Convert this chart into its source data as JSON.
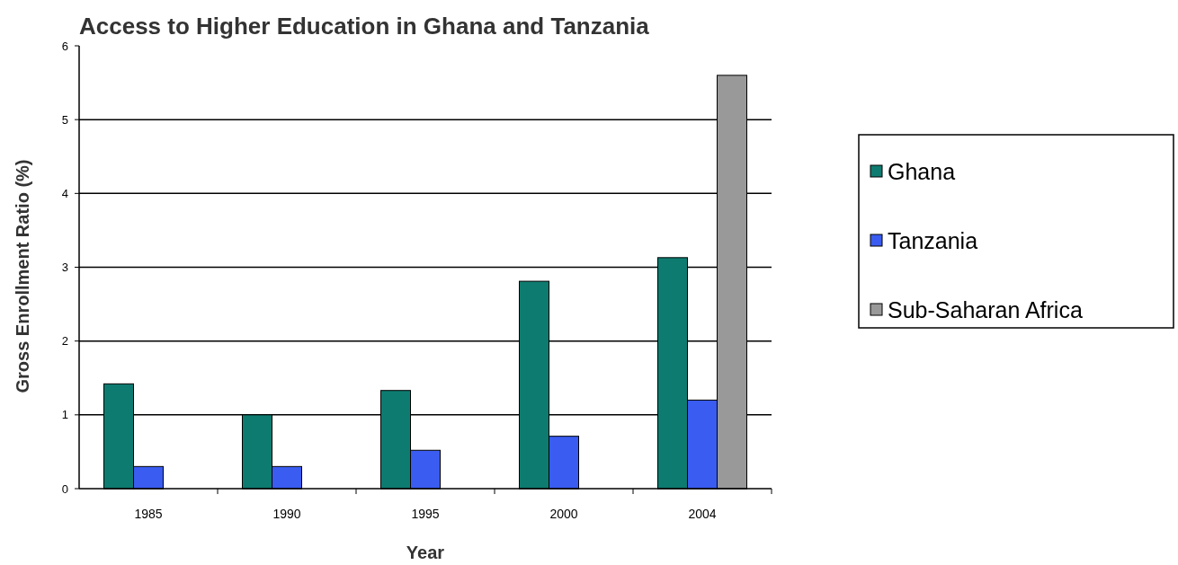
{
  "chart_data": {
    "type": "bar",
    "title": "Access to Higher Education in Ghana and Tanzania",
    "xlabel": "Year",
    "ylabel": "Gross Enrollment Ratio (%)",
    "categories": [
      "1985",
      "1990",
      "1995",
      "2000",
      "2004"
    ],
    "series": [
      {
        "name": "Ghana",
        "color": "#0e7b70",
        "values": [
          1.42,
          1.0,
          1.33,
          2.81,
          3.13
        ]
      },
      {
        "name": "Tanzania",
        "color": "#3a5cf0",
        "values": [
          0.3,
          0.3,
          0.52,
          0.71,
          1.2
        ]
      },
      {
        "name": "Sub-Saharan Africa",
        "color": "#999999",
        "values": [
          null,
          null,
          null,
          null,
          5.6
        ]
      }
    ],
    "ylim": [
      0,
      6
    ],
    "yticks": [
      0,
      1,
      2,
      3,
      4,
      5,
      6
    ],
    "grid": "y",
    "legend": "right"
  }
}
